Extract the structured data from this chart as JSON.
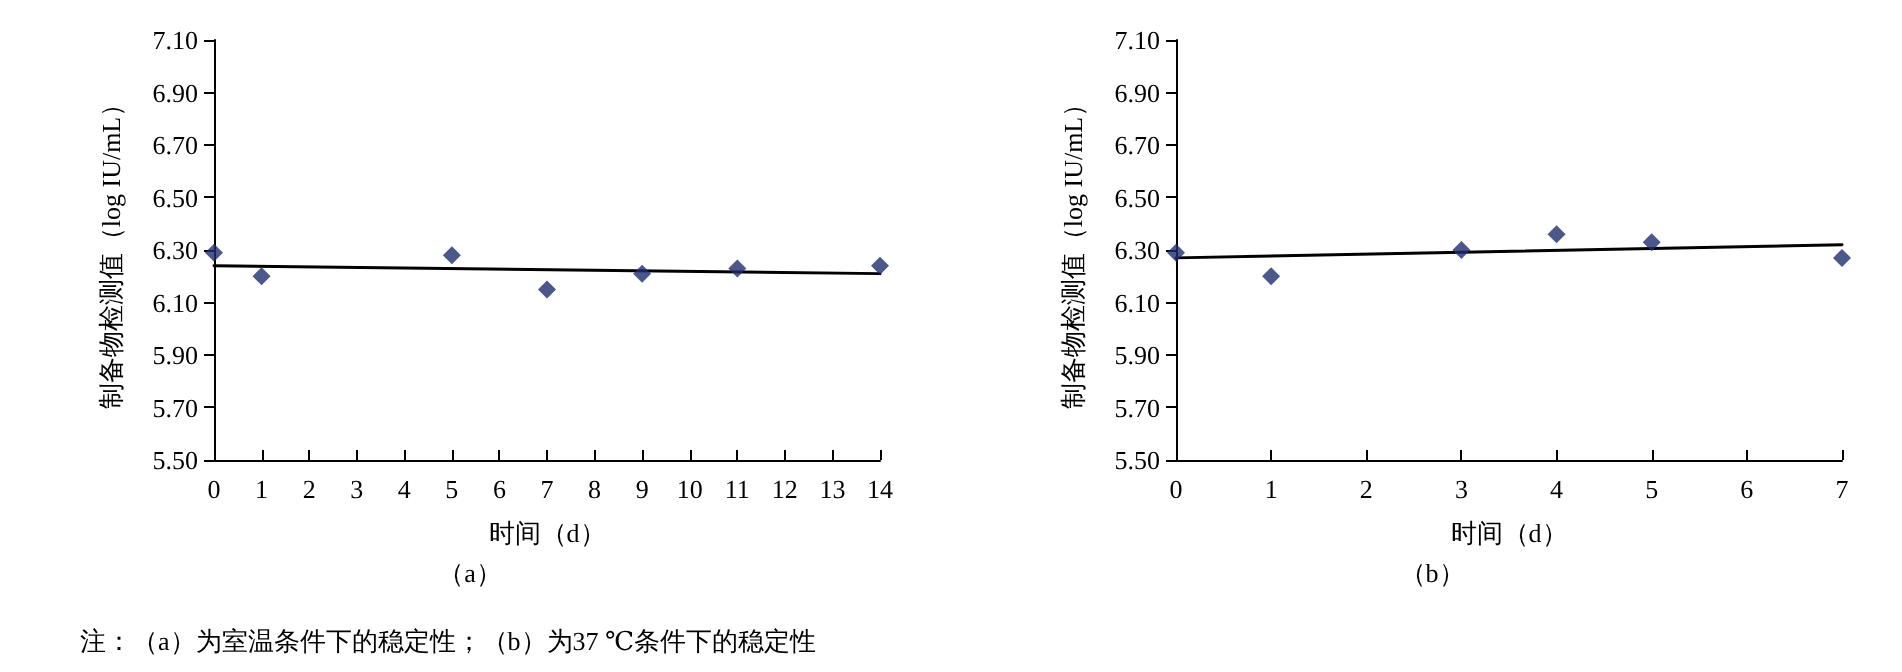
{
  "chart_data": [
    {
      "type": "scatter",
      "title": "（a）",
      "xlabel": "时间（d）",
      "ylabel": "制备物检测值（log IU/mL）",
      "annotations": [
        "注：（a）为室温条件下的稳定性；（b）为37 ℃条件下的稳定性"
      ],
      "xlim": [
        0,
        14
      ],
      "xticks": [
        0,
        1,
        2,
        3,
        4,
        5,
        6,
        7,
        8,
        9,
        10,
        11,
        12,
        13,
        14
      ],
      "ylim": [
        5.5,
        7.1
      ],
      "yticks": [
        {
          "value": 5.5,
          "label": "5.50"
        },
        {
          "value": 5.7,
          "label": "5.70"
        },
        {
          "value": 5.9,
          "label": "5.90"
        },
        {
          "value": 6.1,
          "label": "6.10"
        },
        {
          "value": 6.3,
          "label": "6.30"
        },
        {
          "value": 6.5,
          "label": "6.50"
        },
        {
          "value": 6.7,
          "label": "6.70"
        },
        {
          "value": 6.9,
          "label": "6.90"
        },
        {
          "value": 7.1,
          "label": "7.10"
        }
      ],
      "grid": false,
      "series": [
        {
          "color": "#1f2d6e",
          "marker": "diamond",
          "x": [
            0,
            1,
            5,
            7,
            9,
            11,
            14
          ],
          "values": [
            6.29,
            6.2,
            6.28,
            6.15,
            6.21,
            6.23,
            6.24
          ]
        },
        {
          "type": "line",
          "color": "#000000",
          "marker": "none",
          "line_style": "solid",
          "x": [
            0,
            14
          ],
          "values": [
            6.24,
            6.21
          ]
        }
      ]
    },
    {
      "type": "scatter",
      "title": "（b）",
      "xlabel": "时间（d）",
      "ylabel": "制备物检测值（log IU/mL）",
      "xlim": [
        0,
        7
      ],
      "xticks": [
        0,
        1,
        2,
        3,
        4,
        5,
        6,
        7
      ],
      "ylim": [
        5.5,
        7.1
      ],
      "yticks": [
        {
          "value": 5.5,
          "label": "5.50"
        },
        {
          "value": 5.7,
          "label": "5.70"
        },
        {
          "value": 5.9,
          "label": "5.90"
        },
        {
          "value": 6.1,
          "label": "6.10"
        },
        {
          "value": 6.3,
          "label": "6.30"
        },
        {
          "value": 6.5,
          "label": "6.50"
        },
        {
          "value": 6.7,
          "label": "6.70"
        },
        {
          "value": 6.9,
          "label": "6.90"
        },
        {
          "value": 7.1,
          "label": "7.10"
        }
      ],
      "grid": false,
      "series": [
        {
          "color": "#1f2d6e",
          "marker": "diamond",
          "x": [
            0,
            1,
            3,
            4,
            5,
            7
          ],
          "values": [
            6.29,
            6.2,
            6.3,
            6.36,
            6.33,
            6.27
          ]
        },
        {
          "type": "line",
          "color": "#000000",
          "marker": "none",
          "line_style": "solid",
          "x": [
            0,
            7
          ],
          "values": [
            6.27,
            6.32
          ]
        }
      ]
    }
  ]
}
